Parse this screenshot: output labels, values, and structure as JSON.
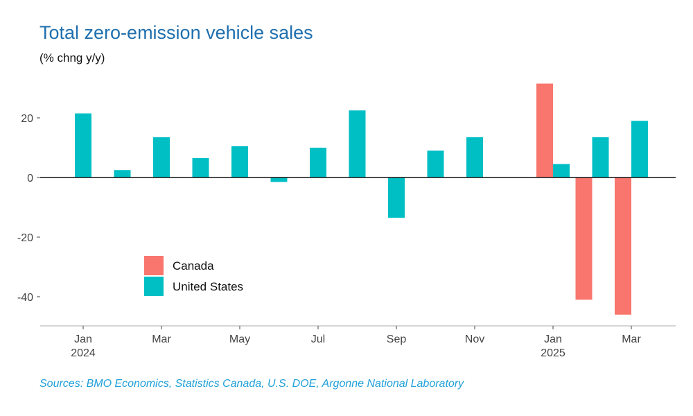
{
  "colors": {
    "canada": "#f8766d",
    "us": "#00bfc4",
    "title": "#1f6fae",
    "source": "#1ea0d8"
  },
  "chart_data": {
    "type": "bar",
    "title": "Total zero-emission vehicle sales",
    "ylabel": "(% chng y/y)",
    "source": "Sources: BMO Economics, Statistics Canada, U.S. DOE, Argonne National Laboratory",
    "categories": [
      "Jan 2024",
      "Feb 2024",
      "Mar 2024",
      "Apr 2024",
      "May 2024",
      "Jun 2024",
      "Jul 2024",
      "Aug 2024",
      "Sep 2024",
      "Oct 2024",
      "Nov 2024",
      "Dec 2024",
      "Jan 2025",
      "Feb 2025",
      "Mar 2025"
    ],
    "x_tick_labels": [
      {
        "index": 0,
        "line1": "Jan",
        "line2": "2024"
      },
      {
        "index": 2,
        "line1": "Mar",
        "line2": ""
      },
      {
        "index": 4,
        "line1": "May",
        "line2": ""
      },
      {
        "index": 6,
        "line1": "Jul",
        "line2": ""
      },
      {
        "index": 8,
        "line1": "Sep",
        "line2": ""
      },
      {
        "index": 10,
        "line1": "Nov",
        "line2": ""
      },
      {
        "index": 12,
        "line1": "Jan",
        "line2": "2025"
      },
      {
        "index": 14,
        "line1": "Mar",
        "line2": ""
      }
    ],
    "y_ticks": [
      20,
      0,
      -20,
      -40
    ],
    "ylim": [
      -50,
      32
    ],
    "series": [
      {
        "name": "Canada",
        "color_key": "canada",
        "values": [
          null,
          null,
          null,
          null,
          null,
          null,
          null,
          null,
          null,
          null,
          null,
          null,
          31.5,
          -41,
          -46
        ]
      },
      {
        "name": "United States",
        "color_key": "us",
        "values": [
          21.5,
          2.5,
          13.5,
          6.5,
          10.5,
          -1.5,
          10,
          22.5,
          -13.5,
          9,
          13.5,
          null,
          4.5,
          13.5,
          19
        ]
      }
    ],
    "legend": [
      {
        "name": "Canada",
        "color_key": "canada"
      },
      {
        "name": "United States",
        "color_key": "us"
      }
    ],
    "legend_position": "bottom-left inside"
  }
}
